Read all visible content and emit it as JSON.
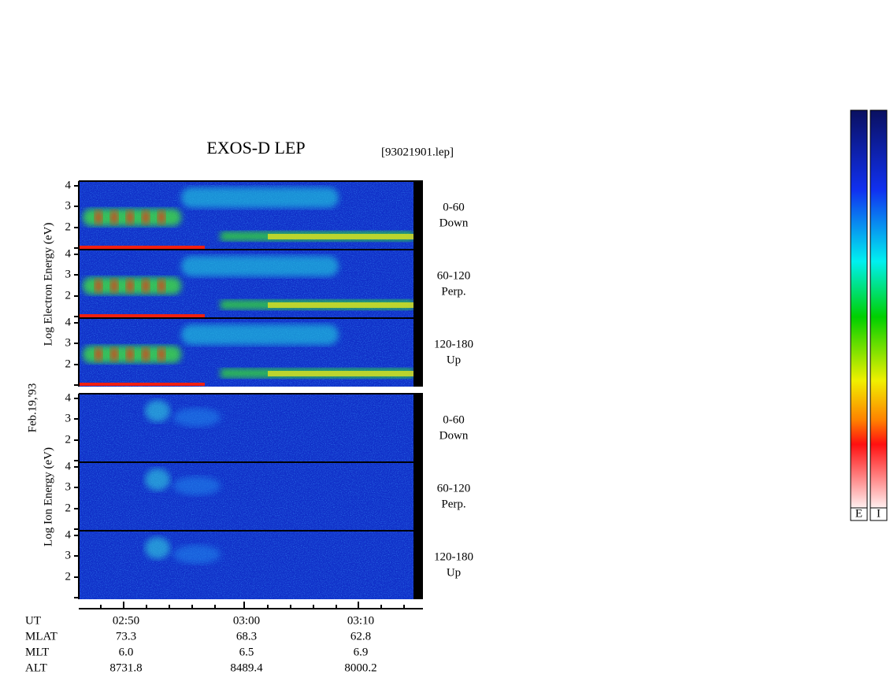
{
  "header": {
    "title": "EXOS-D LEP",
    "file": "[93021901.lep]"
  },
  "date": "Feb.19,'93",
  "electron": {
    "axis_label": "Log Electron Energy (eV)",
    "panels": [
      {
        "angle": "0-60",
        "direction": "Down"
      },
      {
        "angle": "60-120",
        "direction": "Perp."
      },
      {
        "angle": "120-180",
        "direction": "Up"
      }
    ]
  },
  "ion": {
    "axis_label": "Log Ion Energy (eV)",
    "panels": [
      {
        "angle": "0-60",
        "direction": "Down"
      },
      {
        "angle": "60-120",
        "direction": "Perp."
      },
      {
        "angle": "120-180",
        "direction": "Up"
      }
    ]
  },
  "energy_ticks": [
    "2",
    "3",
    "4"
  ],
  "orbit_table": {
    "rows": [
      {
        "label": "UT",
        "values": [
          "02:50",
          "03:00",
          "03:10"
        ]
      },
      {
        "label": "MLAT",
        "values": [
          "73.3",
          "68.3",
          "62.8"
        ]
      },
      {
        "label": "MLT",
        "values": [
          "6.0",
          "6.5",
          "6.9"
        ]
      },
      {
        "label": "ALT",
        "values": [
          "8731.8",
          "8489.4",
          "8000.2"
        ]
      }
    ]
  },
  "colorbars": [
    "E",
    "I"
  ]
}
